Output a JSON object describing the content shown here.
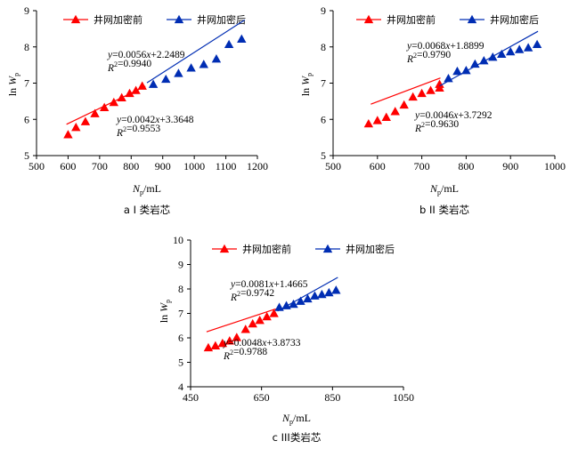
{
  "legend": {
    "before": "井网加密前",
    "after": "井网加密后"
  },
  "colors": {
    "before": "#ff0000",
    "after": "#002db3",
    "axis": "#000000"
  },
  "chart_data": [
    {
      "type": "scatter",
      "caption": "a  I 类岩芯",
      "xlabel": "Np/mL",
      "ylabel": "ln Wp",
      "xlim": [
        500,
        1200
      ],
      "ylim": [
        5,
        9
      ],
      "xticks": [
        500,
        600,
        700,
        800,
        900,
        1000,
        1100,
        1200
      ],
      "yticks": [
        5,
        6,
        7,
        8,
        9
      ],
      "series": [
        {
          "name": "井网加密前",
          "x": [
            600,
            625,
            655,
            685,
            715,
            745,
            770,
            795,
            815,
            835
          ],
          "y": [
            5.58,
            5.78,
            5.94,
            6.16,
            6.33,
            6.47,
            6.6,
            6.72,
            6.8,
            6.92
          ],
          "fit": {
            "slope": 0.0042,
            "intercept": 3.3648,
            "x_range": [
              595,
              845
            ]
          },
          "eq_lines": [
            "y=0.0042x+3.3648",
            "R²=0.9553"
          ]
        },
        {
          "name": "井网加密后",
          "x": [
            870,
            910,
            950,
            990,
            1030,
            1070,
            1110,
            1150
          ],
          "y": [
            6.97,
            7.11,
            7.27,
            7.42,
            7.52,
            7.67,
            8.07,
            8.22
          ],
          "fit": {
            "slope": 0.0056,
            "intercept": 2.2489,
            "x_range": [
              850,
              1160
            ]
          },
          "eq_lines": [
            "y=0.0056x+2.2489",
            "R²=0.9940"
          ]
        }
      ]
    },
    {
      "type": "scatter",
      "caption": "b  II 类岩芯",
      "xlabel": "Np/mL",
      "ylabel": "ln Wp",
      "xlim": [
        500,
        1000
      ],
      "ylim": [
        5,
        9
      ],
      "xticks": [
        500,
        600,
        700,
        800,
        900,
        1000
      ],
      "yticks": [
        5,
        6,
        7,
        8,
        9
      ],
      "series": [
        {
          "name": "井网加密前",
          "x": [
            580,
            600,
            620,
            640,
            660,
            680,
            700,
            720,
            740,
            740
          ],
          "y": [
            5.88,
            5.97,
            6.06,
            6.22,
            6.4,
            6.62,
            6.72,
            6.8,
            6.87,
            6.97
          ],
          "fit": {
            "slope": 0.0046,
            "intercept": 3.7292,
            "x_range": [
              585,
              742
            ]
          },
          "eq_lines": [
            "y=0.0046x+3.7292",
            "R²=0.9630"
          ]
        },
        {
          "name": "井网加密后",
          "x": [
            760,
            780,
            800,
            820,
            840,
            860,
            880,
            900,
            920,
            940,
            960
          ],
          "y": [
            7.13,
            7.33,
            7.35,
            7.53,
            7.62,
            7.72,
            7.8,
            7.87,
            7.93,
            7.98,
            8.07
          ],
          "fit": {
            "slope": 0.0068,
            "intercept": 1.8899,
            "x_range": [
              740,
              962
            ]
          },
          "eq_lines": [
            "y=0.0068x+1.8899",
            "R²=0.9790"
          ]
        }
      ]
    },
    {
      "type": "scatter",
      "caption": "c  III类岩芯",
      "xlabel": "Np/mL",
      "ylabel": "ln Wp",
      "xlim": [
        450,
        1050
      ],
      "ylim": [
        4,
        10
      ],
      "xticks": [
        450,
        650,
        850,
        1050
      ],
      "yticks": [
        4,
        5,
        6,
        7,
        8,
        9,
        10
      ],
      "series": [
        {
          "name": "井网加密前",
          "x": [
            500,
            520,
            540,
            560,
            580,
            605,
            625,
            645,
            665,
            685
          ],
          "y": [
            5.6,
            5.68,
            5.78,
            5.88,
            6.02,
            6.35,
            6.58,
            6.72,
            6.87,
            7.0
          ],
          "fit": {
            "slope": 0.0048,
            "intercept": 3.8733,
            "x_range": [
              495,
              690
            ]
          },
          "eq_lines": [
            "y=0.0048x+3.8733",
            "R²=0.9788"
          ]
        },
        {
          "name": "井网加密后",
          "x": [
            700,
            720,
            740,
            760,
            780,
            800,
            820,
            840,
            860
          ],
          "y": [
            7.25,
            7.32,
            7.38,
            7.5,
            7.6,
            7.72,
            7.78,
            7.85,
            7.95
          ],
          "fit": {
            "slope": 0.0081,
            "intercept": 1.4665,
            "x_range": [
              695,
              865
            ]
          },
          "eq_lines": [
            "y=0.0081x+1.4665",
            "R²=0.9742"
          ]
        }
      ]
    }
  ]
}
